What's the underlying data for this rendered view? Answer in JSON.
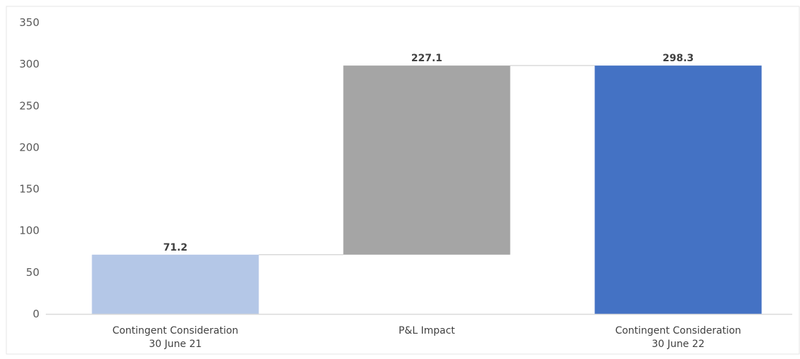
{
  "chart_data": {
    "type": "bar",
    "subtype": "waterfall",
    "categories": [
      [
        "Contingent Consideration",
        "30 June 21"
      ],
      [
        "P&L Impact"
      ],
      [
        "Contingent Consideration",
        "30 June 22"
      ]
    ],
    "series": [
      {
        "values": [
          71.2,
          227.1,
          298.3
        ],
        "base": [
          0,
          71.2,
          0
        ],
        "kind": [
          "total",
          "increase",
          "total"
        ]
      }
    ],
    "data_labels": [
      "71.2",
      "227.1",
      "298.3"
    ],
    "ylim": [
      0,
      350
    ],
    "yticks": [
      0,
      50,
      100,
      150,
      200,
      250,
      300,
      350
    ],
    "grid": false,
    "legend": "none",
    "colors": {
      "start_total": "#b4c7e7",
      "increase": "#a5a5a5",
      "end_total": "#4472c4",
      "connector": "#d9d9d9",
      "axis": "#d9d9d9"
    }
  }
}
